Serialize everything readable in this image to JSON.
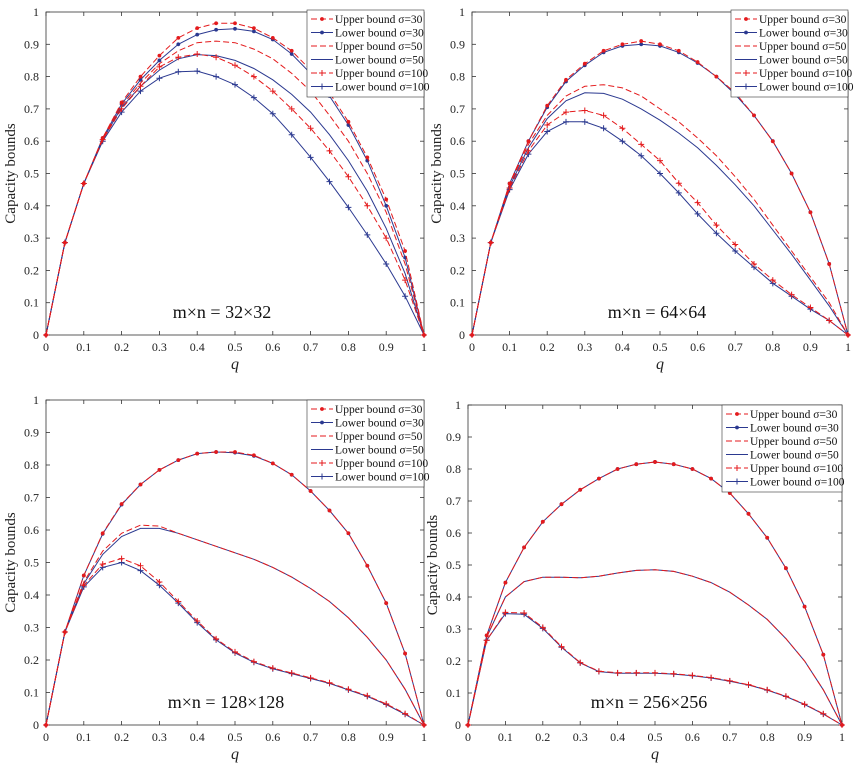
{
  "chart_data": [
    {
      "type": "line",
      "title": "",
      "annotation": "m×n = 32×32",
      "xlabel": "q",
      "ylabel": "Capacity bounds",
      "xlim": [
        0,
        1
      ],
      "ylim": [
        0,
        1
      ],
      "x_ticks": [
        "0",
        "0.1",
        "0.2",
        "0.3",
        "0.4",
        "0.5",
        "0.6",
        "0.7",
        "0.8",
        "0.9",
        "1"
      ],
      "y_ticks": [
        "0",
        "0.1",
        "0.2",
        "0.3",
        "0.4",
        "0.5",
        "0.6",
        "0.7",
        "0.8",
        "0.9",
        "1"
      ],
      "legend_position": "top-right",
      "x": [
        0,
        0.05,
        0.1,
        0.15,
        0.2,
        0.25,
        0.3,
        0.35,
        0.4,
        0.45,
        0.5,
        0.55,
        0.6,
        0.65,
        0.7,
        0.75,
        0.8,
        0.85,
        0.9,
        0.95,
        1
      ],
      "series": [
        {
          "name": "Upper bound σ=30",
          "color": "#e41a1c",
          "dash": "6,3",
          "marker": "dot",
          "values": [
            0,
            0.286,
            0.469,
            0.61,
            0.72,
            0.8,
            0.865,
            0.92,
            0.95,
            0.965,
            0.965,
            0.95,
            0.92,
            0.88,
            0.82,
            0.75,
            0.66,
            0.55,
            0.42,
            0.26,
            0
          ]
        },
        {
          "name": "Lower bound σ=30",
          "color": "#2b3990",
          "dash": "",
          "marker": "dot",
          "values": [
            0,
            0.286,
            0.469,
            0.61,
            0.715,
            0.79,
            0.85,
            0.9,
            0.93,
            0.945,
            0.948,
            0.94,
            0.915,
            0.87,
            0.81,
            0.74,
            0.65,
            0.54,
            0.4,
            0.24,
            0
          ]
        },
        {
          "name": "Upper bound σ=50",
          "color": "#e41a1c",
          "dash": "6,3",
          "marker": "none",
          "values": [
            0,
            0.286,
            0.469,
            0.608,
            0.71,
            0.78,
            0.84,
            0.88,
            0.905,
            0.91,
            0.905,
            0.885,
            0.855,
            0.81,
            0.755,
            0.68,
            0.6,
            0.5,
            0.38,
            0.22,
            0
          ]
        },
        {
          "name": "Lower bound σ=50",
          "color": "#2b3990",
          "dash": "",
          "marker": "none",
          "values": [
            0,
            0.286,
            0.469,
            0.605,
            0.705,
            0.77,
            0.82,
            0.855,
            0.868,
            0.865,
            0.85,
            0.825,
            0.79,
            0.745,
            0.69,
            0.62,
            0.54,
            0.445,
            0.33,
            0.19,
            0
          ]
        },
        {
          "name": "Upper bound σ=100",
          "color": "#e41a1c",
          "dash": "6,3",
          "marker": "plus",
          "values": [
            0,
            0.286,
            0.469,
            0.605,
            0.7,
            0.77,
            0.83,
            0.86,
            0.87,
            0.86,
            0.835,
            0.8,
            0.755,
            0.7,
            0.64,
            0.57,
            0.49,
            0.4,
            0.3,
            0.17,
            0
          ]
        },
        {
          "name": "Lower bound σ=100",
          "color": "#2b3990",
          "dash": "",
          "marker": "plus",
          "values": [
            0,
            0.286,
            0.469,
            0.6,
            0.69,
            0.755,
            0.795,
            0.815,
            0.817,
            0.8,
            0.775,
            0.735,
            0.685,
            0.62,
            0.55,
            0.475,
            0.395,
            0.31,
            0.22,
            0.12,
            0
          ]
        }
      ]
    },
    {
      "type": "line",
      "title": "",
      "annotation": "m×n = 64×64",
      "xlabel": "q",
      "ylabel": "Capacity bounds",
      "xlim": [
        0,
        1
      ],
      "ylim": [
        0,
        1
      ],
      "x_ticks": [
        "0",
        "0.1",
        "0.2",
        "0.3",
        "0.4",
        "0.5",
        "0.6",
        "0.7",
        "0.8",
        "0.9",
        "1"
      ],
      "y_ticks": [
        "0",
        "0.1",
        "0.2",
        "0.3",
        "0.4",
        "0.5",
        "0.6",
        "0.7",
        "0.8",
        "0.9",
        "1"
      ],
      "legend_position": "top-right",
      "x": [
        0,
        0.05,
        0.1,
        0.15,
        0.2,
        0.25,
        0.3,
        0.35,
        0.4,
        0.45,
        0.5,
        0.55,
        0.6,
        0.65,
        0.7,
        0.75,
        0.8,
        0.85,
        0.9,
        0.95,
        1
      ],
      "series": [
        {
          "name": "Upper bound σ=30",
          "color": "#e41a1c",
          "dash": "6,3",
          "marker": "dot",
          "values": [
            0,
            0.286,
            0.469,
            0.6,
            0.71,
            0.79,
            0.84,
            0.88,
            0.9,
            0.91,
            0.9,
            0.88,
            0.845,
            0.8,
            0.75,
            0.68,
            0.6,
            0.5,
            0.38,
            0.22,
            0
          ]
        },
        {
          "name": "Lower bound σ=30",
          "color": "#2b3990",
          "dash": "",
          "marker": "dot",
          "values": [
            0,
            0.286,
            0.469,
            0.6,
            0.705,
            0.785,
            0.835,
            0.875,
            0.895,
            0.9,
            0.895,
            0.875,
            0.842,
            0.8,
            0.745,
            0.68,
            0.6,
            0.5,
            0.38,
            0.22,
            0
          ]
        },
        {
          "name": "Upper bound σ=50",
          "color": "#e41a1c",
          "dash": "6,3",
          "marker": "none",
          "values": [
            0,
            0.286,
            0.465,
            0.59,
            0.68,
            0.74,
            0.77,
            0.775,
            0.765,
            0.74,
            0.7,
            0.66,
            0.61,
            0.555,
            0.49,
            0.42,
            0.34,
            0.26,
            0.18,
            0.1,
            0
          ]
        },
        {
          "name": "Lower bound σ=50",
          "color": "#2b3990",
          "dash": "",
          "marker": "none",
          "values": [
            0,
            0.286,
            0.46,
            0.58,
            0.67,
            0.725,
            0.75,
            0.748,
            0.73,
            0.7,
            0.665,
            0.625,
            0.58,
            0.525,
            0.465,
            0.4,
            0.325,
            0.25,
            0.17,
            0.09,
            0
          ]
        },
        {
          "name": "Upper bound σ=100",
          "color": "#e41a1c",
          "dash": "6,3",
          "marker": "plus",
          "values": [
            0,
            0.286,
            0.455,
            0.57,
            0.65,
            0.69,
            0.695,
            0.68,
            0.64,
            0.59,
            0.54,
            0.47,
            0.41,
            0.34,
            0.28,
            0.22,
            0.17,
            0.125,
            0.085,
            0.045,
            0
          ]
        },
        {
          "name": "Lower bound σ=100",
          "color": "#2b3990",
          "dash": "",
          "marker": "plus",
          "values": [
            0,
            0.286,
            0.45,
            0.56,
            0.63,
            0.66,
            0.66,
            0.64,
            0.6,
            0.555,
            0.5,
            0.44,
            0.375,
            0.315,
            0.26,
            0.21,
            0.16,
            0.12,
            0.08,
            0.045,
            0
          ]
        }
      ]
    },
    {
      "type": "line",
      "title": "",
      "annotation": "m×n = 128×128",
      "xlabel": "q",
      "ylabel": "Capacity bounds",
      "xlim": [
        0,
        1
      ],
      "ylim": [
        0,
        1
      ],
      "x_ticks": [
        "0",
        "0.1",
        "0.2",
        "0.3",
        "0.4",
        "0.5",
        "0.6",
        "0.7",
        "0.8",
        "0.9",
        "1"
      ],
      "y_ticks": [
        "0",
        "0.1",
        "0.2",
        "0.3",
        "0.4",
        "0.5",
        "0.6",
        "0.7",
        "0.8",
        "0.9",
        "1"
      ],
      "legend_position": "top-right",
      "x": [
        0,
        0.05,
        0.1,
        0.15,
        0.2,
        0.25,
        0.3,
        0.35,
        0.4,
        0.45,
        0.5,
        0.55,
        0.6,
        0.65,
        0.7,
        0.75,
        0.8,
        0.85,
        0.9,
        0.95,
        1
      ],
      "series": [
        {
          "name": "Upper bound σ=30",
          "color": "#e41a1c",
          "dash": "6,3",
          "marker": "dot",
          "values": [
            0,
            0.286,
            0.46,
            0.59,
            0.68,
            0.74,
            0.785,
            0.815,
            0.835,
            0.84,
            0.84,
            0.83,
            0.805,
            0.77,
            0.72,
            0.66,
            0.59,
            0.49,
            0.375,
            0.22,
            0
          ]
        },
        {
          "name": "Lower bound σ=30",
          "color": "#2b3990",
          "dash": "",
          "marker": "dot",
          "values": [
            0,
            0.286,
            0.46,
            0.588,
            0.678,
            0.74,
            0.785,
            0.815,
            0.835,
            0.84,
            0.838,
            0.828,
            0.805,
            0.77,
            0.72,
            0.66,
            0.59,
            0.49,
            0.375,
            0.22,
            0
          ]
        },
        {
          "name": "Upper bound σ=50",
          "color": "#e41a1c",
          "dash": "6,3",
          "marker": "none",
          "values": [
            0,
            0.286,
            0.44,
            0.535,
            0.59,
            0.615,
            0.612,
            0.59,
            0.57,
            0.55,
            0.53,
            0.51,
            0.485,
            0.455,
            0.42,
            0.38,
            0.33,
            0.27,
            0.2,
            0.11,
            0
          ]
        },
        {
          "name": "Lower bound σ=50",
          "color": "#2b3990",
          "dash": "",
          "marker": "none",
          "values": [
            0,
            0.286,
            0.435,
            0.525,
            0.58,
            0.605,
            0.605,
            0.59,
            0.57,
            0.55,
            0.53,
            0.51,
            0.485,
            0.455,
            0.42,
            0.38,
            0.33,
            0.27,
            0.2,
            0.11,
            0
          ]
        },
        {
          "name": "Upper bound σ=100",
          "color": "#e41a1c",
          "dash": "6,3",
          "marker": "plus",
          "values": [
            0,
            0.286,
            0.43,
            0.495,
            0.512,
            0.49,
            0.44,
            0.38,
            0.32,
            0.265,
            0.225,
            0.195,
            0.175,
            0.16,
            0.145,
            0.13,
            0.11,
            0.09,
            0.065,
            0.035,
            0
          ]
        },
        {
          "name": "Lower bound σ=100",
          "color": "#2b3990",
          "dash": "",
          "marker": "plus",
          "values": [
            0,
            0.286,
            0.425,
            0.485,
            0.5,
            0.475,
            0.43,
            0.375,
            0.315,
            0.262,
            0.222,
            0.193,
            0.173,
            0.158,
            0.143,
            0.128,
            0.108,
            0.088,
            0.063,
            0.033,
            0
          ]
        }
      ]
    },
    {
      "type": "line",
      "title": "",
      "annotation": "m×n = 256×256",
      "xlabel": "q",
      "ylabel": "Capacity bounds",
      "xlim": [
        0,
        1
      ],
      "ylim": [
        0,
        1
      ],
      "x_ticks": [
        "0",
        "0.1",
        "0.2",
        "0.3",
        "0.4",
        "0.5",
        "0.6",
        "0.7",
        "0.8",
        "0.9",
        "1"
      ],
      "y_ticks": [
        "0",
        "0.1",
        "0.2",
        "0.3",
        "0.4",
        "0.5",
        "0.6",
        "0.7",
        "0.8",
        "0.9",
        "1"
      ],
      "legend_position": "top-right",
      "x": [
        0,
        0.05,
        0.1,
        0.15,
        0.2,
        0.25,
        0.3,
        0.35,
        0.4,
        0.45,
        0.5,
        0.55,
        0.6,
        0.65,
        0.7,
        0.75,
        0.8,
        0.85,
        0.9,
        0.95,
        1
      ],
      "series": [
        {
          "name": "Upper bound σ=30",
          "color": "#e41a1c",
          "dash": "6,3",
          "marker": "dot",
          "values": [
            0,
            0.28,
            0.445,
            0.555,
            0.635,
            0.69,
            0.735,
            0.77,
            0.8,
            0.815,
            0.822,
            0.815,
            0.8,
            0.77,
            0.725,
            0.66,
            0.585,
            0.49,
            0.37,
            0.22,
            0
          ]
        },
        {
          "name": "Lower bound σ=30",
          "color": "#2b3990",
          "dash": "",
          "marker": "dot",
          "values": [
            0,
            0.28,
            0.445,
            0.555,
            0.635,
            0.69,
            0.735,
            0.77,
            0.8,
            0.815,
            0.822,
            0.815,
            0.8,
            0.77,
            0.725,
            0.66,
            0.585,
            0.49,
            0.37,
            0.22,
            0
          ]
        },
        {
          "name": "Upper bound σ=50",
          "color": "#e41a1c",
          "dash": "6,3",
          "marker": "none",
          "values": [
            0,
            0.275,
            0.4,
            0.448,
            0.462,
            0.462,
            0.46,
            0.465,
            0.475,
            0.483,
            0.485,
            0.48,
            0.465,
            0.445,
            0.415,
            0.375,
            0.33,
            0.27,
            0.2,
            0.11,
            0
          ]
        },
        {
          "name": "Lower bound σ=50",
          "color": "#2b3990",
          "dash": "",
          "marker": "none",
          "values": [
            0,
            0.275,
            0.4,
            0.448,
            0.462,
            0.462,
            0.46,
            0.465,
            0.475,
            0.483,
            0.485,
            0.48,
            0.465,
            0.445,
            0.415,
            0.375,
            0.33,
            0.27,
            0.2,
            0.11,
            0
          ]
        },
        {
          "name": "Upper bound σ=100",
          "color": "#e41a1c",
          "dash": "6,3",
          "marker": "plus",
          "values": [
            0,
            0.265,
            0.352,
            0.35,
            0.305,
            0.245,
            0.195,
            0.168,
            0.163,
            0.163,
            0.163,
            0.16,
            0.155,
            0.148,
            0.138,
            0.126,
            0.11,
            0.09,
            0.065,
            0.035,
            0
          ]
        },
        {
          "name": "Lower bound σ=100",
          "color": "#2b3990",
          "dash": "",
          "marker": "plus",
          "values": [
            0,
            0.265,
            0.348,
            0.346,
            0.302,
            0.243,
            0.194,
            0.167,
            0.162,
            0.162,
            0.162,
            0.159,
            0.154,
            0.147,
            0.137,
            0.125,
            0.109,
            0.089,
            0.064,
            0.034,
            0
          ]
        }
      ]
    }
  ]
}
